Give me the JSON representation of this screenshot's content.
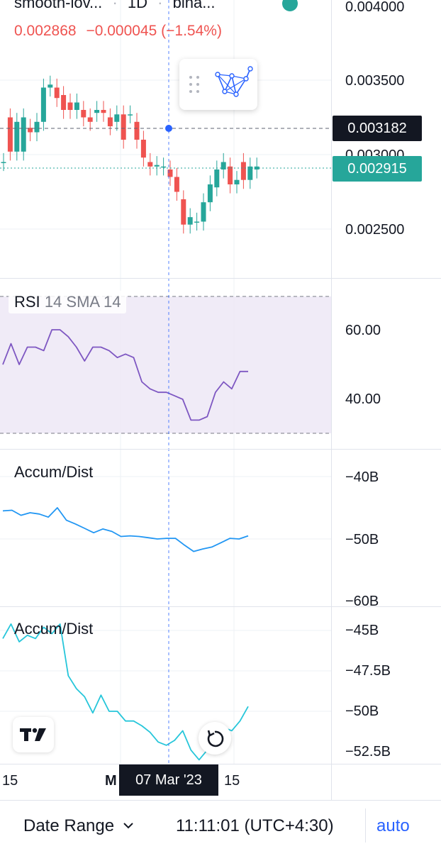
{
  "header": {
    "symbol": "smooth-lov...",
    "interval": "1D",
    "exchange": "bina...",
    "price": "0.002868",
    "change": "−0.000045",
    "change_pct": "(−1.54%)"
  },
  "colors": {
    "up": "#26a69a",
    "down": "#ef5350",
    "rsi": "#7e57c2",
    "ad1": "#2196f3",
    "ad2": "#26c6da",
    "crosshair": "#2962ff"
  },
  "price_axis": {
    "ticks": [
      "0.004000",
      "0.003500",
      "0.003000",
      "0.002500"
    ],
    "crosshair_value": "0.003182",
    "last_value": "0.002915"
  },
  "rsi": {
    "legend": "RSI",
    "params": "14 SMA 14",
    "ticks": [
      "60.00",
      "40.00"
    ]
  },
  "ad1": {
    "legend": "Accum/Dist",
    "ticks": [
      "−40B",
      "−50B",
      "−60B"
    ]
  },
  "ad2": {
    "legend": "Accum/Dist",
    "ticks": [
      "−45B",
      "−47.5B",
      "−50B",
      "−52.5B"
    ]
  },
  "time_axis": {
    "labels": [
      "15",
      "M",
      "15"
    ],
    "crosshair_label": "07 Mar '23"
  },
  "footer": {
    "date_range": "Date Range",
    "time": "11:11:01 (UTC+4:30)",
    "scale": "auto"
  },
  "icons": {
    "drag_handle": "drag-handle-icon",
    "pattern_tool": "pattern-tool-icon",
    "logo": "tradingview-logo",
    "reset": "reset-chart-icon",
    "chevron": "chevron-down-icon"
  },
  "chart_data": [
    {
      "type": "candlestick",
      "title": "",
      "series": [
        {
          "name": "smooth-lov... 1D",
          "open": [
            0.00295,
            0.00325,
            0.00302,
            0.00302,
            0.00318,
            0.00315,
            0.00322,
            0.00345,
            0.00345,
            0.0034,
            0.00335,
            0.0033,
            0.0033,
            0.00325,
            0.00328,
            0.0033,
            0.00325,
            0.00322,
            0.00327,
            0.00327,
            0.00322,
            0.0031,
            0.00295,
            0.00292,
            0.00292,
            0.0029,
            0.00285,
            0.0027,
            0.00253,
            0.00255,
            0.00255,
            0.00268,
            0.00278,
            0.0029,
            0.00292,
            0.0028,
            0.00295,
            0.00283,
            0.0029
          ],
          "close": [
            0.00295,
            0.00302,
            0.00322,
            0.00325,
            0.00315,
            0.00322,
            0.00345,
            0.00347,
            0.00338,
            0.0033,
            0.0033,
            0.00335,
            0.00325,
            0.00322,
            0.0033,
            0.00328,
            0.00319,
            0.00327,
            0.0031,
            0.00327,
            0.0031,
            0.00298,
            0.00292,
            0.00293,
            0.00292,
            0.00285,
            0.00275,
            0.00253,
            0.00258,
            0.00255,
            0.00268,
            0.0028,
            0.0029,
            0.00295,
            0.0028,
            0.00283,
            0.00283,
            0.00292,
            0.00292
          ]
        }
      ]
    },
    {
      "type": "line",
      "title": "RSI 14 SMA 14",
      "ylim": [
        30,
        70
      ],
      "series": [
        {
          "name": "RSI",
          "values": [
            50,
            56,
            50,
            55,
            55,
            54,
            60,
            60,
            58,
            55,
            51,
            55,
            55,
            54,
            52,
            53,
            52,
            45,
            43,
            42,
            42,
            41,
            40,
            34,
            34,
            35,
            42,
            45,
            43,
            48,
            48
          ]
        }
      ]
    },
    {
      "type": "line",
      "title": "Accum/Dist",
      "ylim": [
        -60,
        -40
      ],
      "series": [
        {
          "name": "Accum/Dist",
          "values": [
            -45.5,
            -45.4,
            -46.2,
            -45.8,
            -46.0,
            -46.5,
            -45.0,
            -47.0,
            -47.6,
            -48.3,
            -49.0,
            -48.4,
            -48.8,
            -49.6,
            -49.5,
            -49.6,
            -49.8,
            -50.0,
            -49.9,
            -49.9,
            -51.0,
            -52.0,
            -51.6,
            -51.3,
            -50.6,
            -49.9,
            -50.0,
            -49.5
          ]
        }
      ]
    },
    {
      "type": "line",
      "title": "Accum/Dist",
      "ylim": [
        -53.5,
        -44
      ],
      "series": [
        {
          "name": "Accum/Dist",
          "values": [
            -45.5,
            -44.6,
            -45.7,
            -45.3,
            -45.5,
            -44.8,
            -45.2,
            -44.6,
            -47.8,
            -48.6,
            -49.1,
            -50.1,
            -49.0,
            -50.0,
            -50.0,
            -50.6,
            -50.6,
            -50.9,
            -51.3,
            -51.9,
            -52.1,
            -51.8,
            -51.2,
            -52.4,
            -53.0,
            -52.4,
            -51.8,
            -51.0,
            -51.2,
            -50.6,
            -49.7
          ]
        }
      ]
    }
  ]
}
